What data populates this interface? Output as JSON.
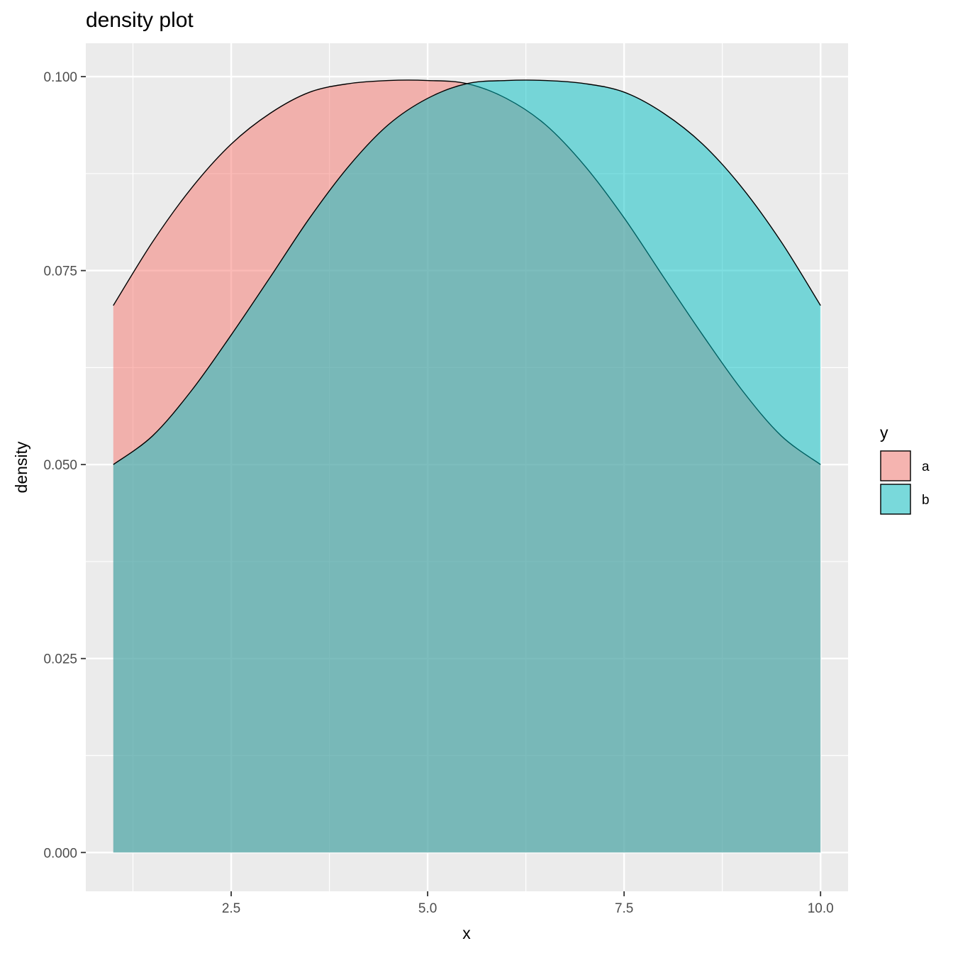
{
  "chart_data": {
    "type": "area",
    "title": "density plot",
    "xlabel": "x",
    "ylabel": "density",
    "xlim": [
      0.65,
      10.35
    ],
    "ylim": [
      -0.005,
      0.1043
    ],
    "x_ticks": [
      2.5,
      5.0,
      7.5,
      10.0
    ],
    "x_tick_labels": [
      "2.5",
      "5.0",
      "7.5",
      "10.0"
    ],
    "y_ticks": [
      0.0,
      0.025,
      0.05,
      0.075,
      0.1
    ],
    "y_tick_labels": [
      "0.000",
      "0.025",
      "0.050",
      "0.075",
      "0.100"
    ],
    "grid": true,
    "legend": {
      "title": "y",
      "position": "right"
    },
    "x": [
      1,
      1.5,
      2,
      2.5,
      3,
      3.5,
      4,
      4.5,
      5,
      5.5,
      6,
      6.5,
      7,
      7.5,
      8,
      8.5,
      9,
      9.5,
      10
    ],
    "series": [
      {
        "name": "a",
        "color": "#F8766D",
        "values": [
          0.0705,
          0.0787,
          0.0857,
          0.0913,
          0.0953,
          0.098,
          0.0991,
          0.0995,
          0.0995,
          0.0991,
          0.0972,
          0.0938,
          0.0885,
          0.0818,
          0.0742,
          0.0667,
          0.0596,
          0.0537,
          0.05
        ]
      },
      {
        "name": "b",
        "color": "#00BFC4",
        "values": [
          0.05,
          0.0537,
          0.0596,
          0.0667,
          0.0742,
          0.0818,
          0.0885,
          0.0938,
          0.0972,
          0.0991,
          0.0995,
          0.0995,
          0.0991,
          0.098,
          0.0953,
          0.0913,
          0.0857,
          0.0787,
          0.0705
        ]
      }
    ]
  }
}
